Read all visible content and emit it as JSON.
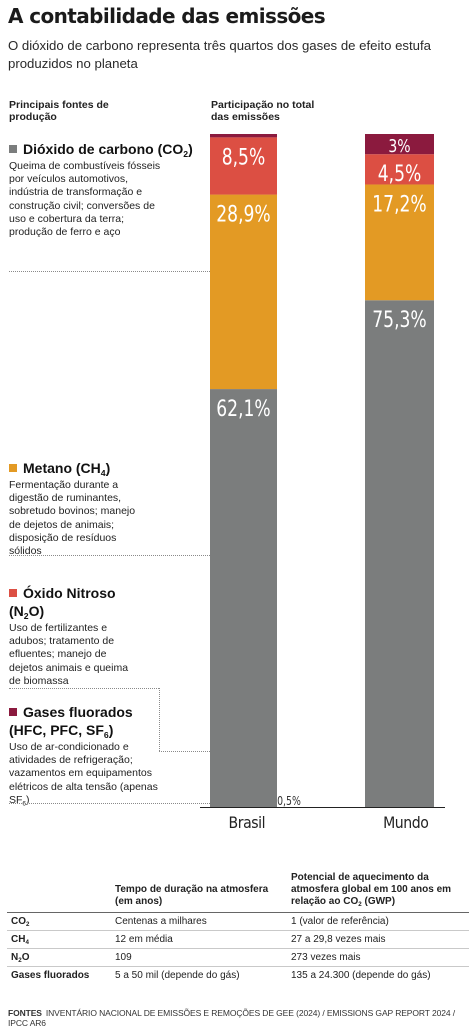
{
  "title": "A contabilidade das emissões",
  "subtitle": "O dióxido de carbono representa três quartos dos gases de efeito estufa produzidos no planeta",
  "left_header": "Principais fontes de produção",
  "right_header": "Participação no total das emissões",
  "colors": {
    "co2": "#7b7d7d",
    "ch4": "#e39a24",
    "n2o": "#dc4f43",
    "fluor": "#8b1a3e"
  },
  "gases": [
    {
      "name": "Dióxido de carbono (CO",
      "sub": "2",
      "tail": ")",
      "desc": "Queima de combustíveis fósseis por veículos automotivos, indústria de transformação e construção civil; conversões de uso e cobertura da terra; produção de ferro e aço"
    },
    {
      "name": "Metano (CH",
      "sub": "4",
      "tail": ")",
      "desc": "Fermentação durante a digestão de ruminantes, sobretudo bovinos; manejo de dejetos de animais; disposição de resíduos sólidos"
    },
    {
      "name": "Óxido Nitroso",
      "formula_a": "(N",
      "sub": "2",
      "formula_b": "O)",
      "desc": "Uso de fertilizantes e adubos; tratamento de efluentes; manejo de dejetos animais e queima de biomassa"
    },
    {
      "name": "Gases fluorados",
      "formula_a": "(HFC, PFC, SF",
      "sub": "6",
      "formula_b": ")",
      "desc_a": "Uso de ar-condicionado e atividades de refrigeração; vazamentos em equipamentos elétricos de alta tensão (apenas SF",
      "desc_sub": "6",
      "desc_b": ")"
    }
  ],
  "chart_data": {
    "type": "bar",
    "stacked": true,
    "unit": "%",
    "categories": [
      "Brasil",
      "Mundo"
    ],
    "series": [
      {
        "name": "Dióxido de carbono (CO2)",
        "color": "#7b7d7d",
        "values": [
          62.1,
          75.3
        ],
        "labels": [
          "62,1%",
          "75,3%"
        ]
      },
      {
        "name": "Metano (CH4)",
        "color": "#e39a24",
        "values": [
          28.9,
          17.2
        ],
        "labels": [
          "28,9%",
          "17,2%"
        ]
      },
      {
        "name": "Óxido Nitroso (N2O)",
        "color": "#dc4f43",
        "values": [
          8.5,
          4.5
        ],
        "labels": [
          "8,5%",
          "4,5%"
        ]
      },
      {
        "name": "Gases fluorados (HFC, PFC, SF6)",
        "color": "#8b1a3e",
        "values": [
          0.5,
          3
        ],
        "labels": [
          "0,5%",
          "3%"
        ]
      }
    ],
    "ylim": [
      0,
      100
    ]
  },
  "table": {
    "headers": [
      "Tempo de duração na atmosfera (em anos)",
      "Potencial de aquecimento da atmosfera global em 100 anos em relação ao CO2 (GWP)"
    ],
    "rows": [
      {
        "gas": "CO",
        "sub": "2",
        "tail": "",
        "duration": "Centenas a milhares",
        "gwp": "1 (valor de referência)"
      },
      {
        "gas": "CH",
        "sub": "4",
        "tail": "",
        "duration": "12 em média",
        "gwp": "27 a 29,8 vezes mais"
      },
      {
        "gas": "N",
        "sub": "2",
        "tail": "O",
        "duration": "109",
        "gwp": "273 vezes mais"
      },
      {
        "gas": "Gases fluorados",
        "sub": "",
        "tail": "",
        "duration": "5 a 50 mil (depende do gás)",
        "gwp": "135 a 24.300 (depende do gás)"
      }
    ]
  },
  "footer": {
    "label": "FONTES",
    "text": "INVENTÁRIO NACIONAL DE EMISSÕES E REMOÇÕES DE GEE (2024) / EMISSIONS GAP REPORT 2024 / IPCC AR6"
  }
}
